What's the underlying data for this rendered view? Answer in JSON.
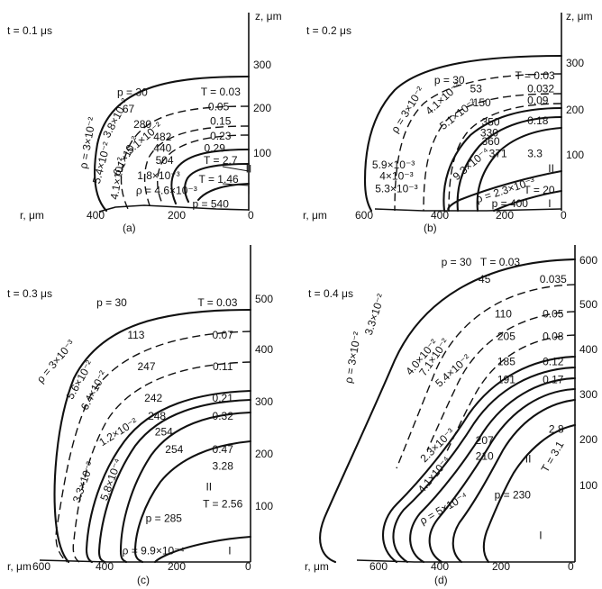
{
  "chart_data": [
    {
      "type": "contour",
      "panel": "(a)",
      "time_label": "t = 0.1 μs",
      "xlabel": "r, μm",
      "ylabel": "z, μm",
      "xlim": [
        500,
        0
      ],
      "ylim": [
        0,
        360
      ],
      "x_ticks": [
        "400",
        "200",
        "0"
      ],
      "y_ticks": [
        "300",
        "200",
        "100"
      ],
      "annotations": [
        {
          "text": "p = 30",
          "x": 290,
          "y": 262
        },
        {
          "text": "T = 0.03",
          "x": 70,
          "y": 263
        },
        {
          "text": "67",
          "x": 300,
          "y": 225
        },
        {
          "text": "0.05",
          "x": 75,
          "y": 230
        },
        {
          "text": "280",
          "x": 265,
          "y": 190
        },
        {
          "text": "0.15",
          "x": 70,
          "y": 197
        },
        {
          "text": "482",
          "x": 215,
          "y": 162
        },
        {
          "text": "0.23",
          "x": 70,
          "y": 164
        },
        {
          "text": "440",
          "x": 215,
          "y": 137
        },
        {
          "text": "0.29",
          "x": 85,
          "y": 137
        },
        {
          "text": "504",
          "x": 210,
          "y": 110
        },
        {
          "text": "T = 2.7",
          "x": 70,
          "y": 110
        },
        {
          "text": "T = 1.46",
          "x": 75,
          "y": 67
        },
        {
          "text": "p = 540",
          "x": 95,
          "y": 12
        },
        {
          "text": "II",
          "x": 0,
          "y": 90
        },
        {
          "text": "I",
          "x": 0,
          "y": 42
        },
        {
          "text": "ρ = 3×10⁻²",
          "x": 400,
          "y": 150,
          "rotation": -80
        },
        {
          "text": "3.8×10⁻²",
          "x": 330,
          "y": 205,
          "rotation": -62
        },
        {
          "text": "5.4×10⁻²",
          "x": 365,
          "y": 105,
          "rotation": -75
        },
        {
          "text": "4.1×10⁻²",
          "x": 325,
          "y": 70,
          "rotation": -80
        },
        {
          "text": "6.1×10⁻²",
          "x": 305,
          "y": 120,
          "rotation": -62
        },
        {
          "text": "5.1×10⁻²",
          "x": 260,
          "y": 160,
          "rotation": -40
        },
        {
          "text": "1.8×10⁻³",
          "x": 225,
          "y": 75
        },
        {
          "text": "ρ = 4.6×10⁻³",
          "x": 205,
          "y": 42
        }
      ]
    },
    {
      "type": "contour",
      "panel": "(b)",
      "time_label": "t = 0.2 μs",
      "xlabel": "r, μm",
      "ylabel": "z, μm",
      "xlim": [
        700,
        0
      ],
      "ylim": [
        0,
        360
      ],
      "x_ticks": [
        "600",
        "400",
        "200",
        "0"
      ],
      "y_ticks": [
        "300",
        "200",
        "100"
      ],
      "annotations": [
        {
          "text": "p = 30",
          "x": 380,
          "y": 285
        },
        {
          "text": "T = 0.03",
          "x": 90,
          "y": 295
        },
        {
          "text": "ρ = 3×10⁻²",
          "x": 520,
          "y": 220,
          "rotation": -58
        },
        {
          "text": "4.1×10⁻²",
          "x": 400,
          "y": 245,
          "rotation": -42
        },
        {
          "text": "53",
          "x": 290,
          "y": 266
        },
        {
          "text": "0.032",
          "x": 70,
          "y": 266
        },
        {
          "text": "5.1×10⁻²",
          "x": 350,
          "y": 210,
          "rotation": -38
        },
        {
          "text": "150",
          "x": 270,
          "y": 235
        },
        {
          "text": "0.09",
          "x": 80,
          "y": 240
        },
        {
          "text": "350",
          "x": 240,
          "y": 192
        },
        {
          "text": "0.18",
          "x": 80,
          "y": 195
        },
        {
          "text": "330",
          "x": 245,
          "y": 168
        },
        {
          "text": "360",
          "x": 240,
          "y": 150
        },
        {
          "text": "5.9×10⁻³",
          "x": 570,
          "y": 98
        },
        {
          "text": "4×10⁻³",
          "x": 560,
          "y": 73
        },
        {
          "text": "5.3×10⁻³",
          "x": 560,
          "y": 45
        },
        {
          "text": "9.3×10⁻⁴",
          "x": 305,
          "y": 100,
          "rotation": -40
        },
        {
          "text": "371",
          "x": 215,
          "y": 123
        },
        {
          "text": "3.3",
          "x": 90,
          "y": 123
        },
        {
          "text": "II",
          "x": 35,
          "y": 90
        },
        {
          "text": "ρ = 2.3×10⁻³",
          "x": 190,
          "y": 42,
          "rotation": -18
        },
        {
          "text": "T = 20",
          "x": 75,
          "y": 42
        },
        {
          "text": "p = 400",
          "x": 175,
          "y": 12
        },
        {
          "text": "I",
          "x": 40,
          "y": 12
        }
      ]
    },
    {
      "type": "contour",
      "panel": "(c)",
      "time_label": "t = 0.3 μs",
      "xlabel": "r, μm",
      "ylabel": "z, μm",
      "xlim": [
        700,
        0
      ],
      "ylim": [
        0,
        560
      ],
      "x_ticks": [
        "600",
        "400",
        "200",
        "0"
      ],
      "y_ticks": [
        "500",
        "400",
        "300",
        "200",
        "100"
      ],
      "annotations": [
        {
          "text": "p = 30",
          "x": 400,
          "y": 492
        },
        {
          "text": "T = 0.03",
          "x": 95,
          "y": 492
        },
        {
          "text": "113",
          "x": 330,
          "y": 430
        },
        {
          "text": "0.07",
          "x": 80,
          "y": 430
        },
        {
          "text": "247",
          "x": 300,
          "y": 370
        },
        {
          "text": "0.11",
          "x": 80,
          "y": 370
        },
        {
          "text": "ρ = 3×10⁻³",
          "x": 560,
          "y": 380,
          "rotation": -50
        },
        {
          "text": "5.6×10⁻²",
          "x": 490,
          "y": 345,
          "rotation": -60
        },
        {
          "text": "6.4×10⁻²",
          "x": 450,
          "y": 325,
          "rotation": -62
        },
        {
          "text": "242",
          "x": 280,
          "y": 310
        },
        {
          "text": "0.21",
          "x": 80,
          "y": 310
        },
        {
          "text": "248",
          "x": 270,
          "y": 275
        },
        {
          "text": "0.32",
          "x": 80,
          "y": 275
        },
        {
          "text": "1.2×10⁻²",
          "x": 380,
          "y": 245,
          "rotation": -32
        },
        {
          "text": "254",
          "x": 250,
          "y": 245
        },
        {
          "text": "254",
          "x": 220,
          "y": 212
        },
        {
          "text": "0.47",
          "x": 80,
          "y": 212
        },
        {
          "text": "3.3×10⁻³",
          "x": 480,
          "y": 150,
          "rotation": -70
        },
        {
          "text": "5.8×10⁻⁴",
          "x": 400,
          "y": 155,
          "rotation": -70
        },
        {
          "text": "3.28",
          "x": 80,
          "y": 180
        },
        {
          "text": "II",
          "x": 120,
          "y": 140
        },
        {
          "text": "T = 2.56",
          "x": 80,
          "y": 108
        },
        {
          "text": "p = 285",
          "x": 250,
          "y": 80
        },
        {
          "text": "ρ = 9.9×10⁻⁴",
          "x": 280,
          "y": 18
        },
        {
          "text": "I",
          "x": 60,
          "y": 18
        }
      ]
    },
    {
      "type": "contour",
      "panel": "(d)",
      "time_label": "t = 0.4 μs",
      "xlabel": "r, μm",
      "ylabel": "z, μm",
      "xlim": [
        900,
        0
      ],
      "ylim": [
        0,
        700
      ],
      "x_ticks": [
        "600",
        "400",
        "200",
        "0"
      ],
      "y_ticks": [
        "600",
        "500",
        "400",
        "300",
        "200",
        "100"
      ],
      "annotations": [
        {
          "text": "p = 30",
          "x": 380,
          "y": 660
        },
        {
          "text": "T = 0.03",
          "x": 240,
          "y": 660
        },
        {
          "text": "45",
          "x": 290,
          "y": 622
        },
        {
          "text": "0.035",
          "x": 70,
          "y": 622
        },
        {
          "text": "ρ = 3×10⁻²",
          "x": 710,
          "y": 450,
          "rotation": -80
        },
        {
          "text": "3.3×10⁻²",
          "x": 640,
          "y": 545,
          "rotation": -72
        },
        {
          "text": "110",
          "x": 230,
          "y": 545
        },
        {
          "text": "0.05",
          "x": 70,
          "y": 545
        },
        {
          "text": "4.0×10⁻²",
          "x": 490,
          "y": 450,
          "rotation": -50
        },
        {
          "text": "7.1×10⁻²",
          "x": 450,
          "y": 450,
          "rotation": -55
        },
        {
          "text": "205",
          "x": 220,
          "y": 495
        },
        {
          "text": "0.08",
          "x": 70,
          "y": 495
        },
        {
          "text": "5.4×10⁻²",
          "x": 390,
          "y": 420,
          "rotation": -42
        },
        {
          "text": "185",
          "x": 220,
          "y": 440
        },
        {
          "text": "0.12",
          "x": 70,
          "y": 440
        },
        {
          "text": "191",
          "x": 220,
          "y": 400
        },
        {
          "text": "0.17",
          "x": 70,
          "y": 400
        },
        {
          "text": "2.3×10⁻³",
          "x": 440,
          "y": 255,
          "rotation": -45
        },
        {
          "text": "207",
          "x": 290,
          "y": 265
        },
        {
          "text": "210",
          "x": 290,
          "y": 230
        },
        {
          "text": "4.1×10⁻⁴",
          "x": 450,
          "y": 190,
          "rotation": -50
        },
        {
          "text": "II",
          "x": 150,
          "y": 225
        },
        {
          "text": "2.8",
          "x": 60,
          "y": 290
        },
        {
          "text": "T = 3.1",
          "x": 70,
          "y": 230,
          "rotation": -60
        },
        {
          "text": "p = 230",
          "x": 200,
          "y": 145
        },
        {
          "text": "ρ = 5×10⁻⁴",
          "x": 420,
          "y": 115,
          "rotation": -30
        },
        {
          "text": "I",
          "x": 110,
          "y": 55
        }
      ]
    }
  ]
}
